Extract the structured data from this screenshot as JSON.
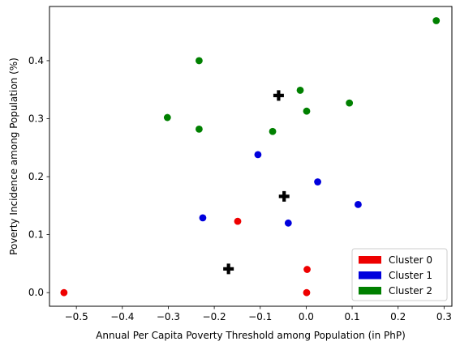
{
  "chart_data": {
    "type": "scatter",
    "xlabel": "Annual Per Capita Poverty Threshold among Population (in PhP)",
    "ylabel": "Poverty Incidence among Population (%)",
    "xlim": [
      -0.5585,
      0.317
    ],
    "ylim": [
      -0.0235,
      0.4935
    ],
    "x_ticks": [
      -0.5,
      -0.4,
      -0.3,
      -0.2,
      -0.1,
      0.0,
      0.1,
      0.2,
      0.3
    ],
    "x_tick_labels": [
      "−0.5",
      "−0.4",
      "−0.3",
      "−0.2",
      "−0.1",
      "0.0",
      "0.1",
      "0.2",
      "0.3"
    ],
    "y_ticks": [
      0.0,
      0.1,
      0.2,
      0.3,
      0.4
    ],
    "y_tick_labels": [
      "0.0",
      "0.1",
      "0.2",
      "0.3",
      "0.4"
    ],
    "grid": false,
    "legend_position": "lower-right",
    "series": [
      {
        "name": "Cluster 0",
        "color": "#ee0000",
        "points": [
          {
            "x": -0.527,
            "y": 0.0
          },
          {
            "x": -0.149,
            "y": 0.123
          },
          {
            "x": 0.002,
            "y": 0.04
          },
          {
            "x": 0.001,
            "y": 0.0
          }
        ]
      },
      {
        "name": "Cluster 1",
        "color": "#0000dd",
        "points": [
          {
            "x": -0.225,
            "y": 0.129
          },
          {
            "x": -0.105,
            "y": 0.238
          },
          {
            "x": -0.039,
            "y": 0.12
          },
          {
            "x": 0.025,
            "y": 0.191
          },
          {
            "x": 0.113,
            "y": 0.152
          }
        ]
      },
      {
        "name": "Cluster 2",
        "color": "#008000",
        "points": [
          {
            "x": -0.302,
            "y": 0.302
          },
          {
            "x": -0.233,
            "y": 0.4
          },
          {
            "x": -0.233,
            "y": 0.282
          },
          {
            "x": -0.073,
            "y": 0.278
          },
          {
            "x": -0.013,
            "y": 0.349
          },
          {
            "x": 0.001,
            "y": 0.313
          },
          {
            "x": 0.094,
            "y": 0.327
          },
          {
            "x": 0.283,
            "y": 0.469
          }
        ]
      }
    ],
    "centroids": {
      "marker": "plus",
      "color": "#000000",
      "points": [
        {
          "x": -0.169,
          "y": 0.041
        },
        {
          "x": -0.048,
          "y": 0.166
        },
        {
          "x": -0.06,
          "y": 0.34
        }
      ]
    }
  }
}
